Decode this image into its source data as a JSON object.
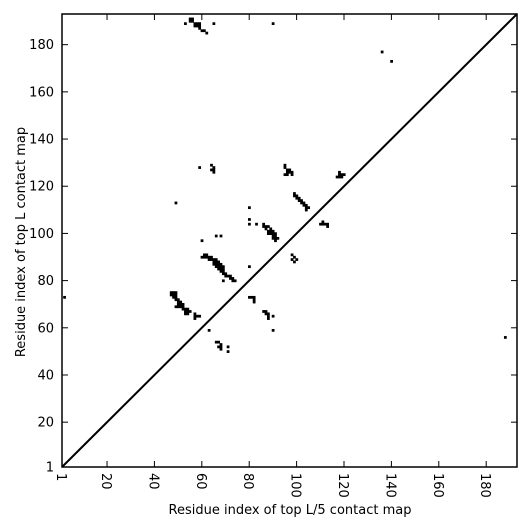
{
  "chart_data": {
    "type": "scatter",
    "xlabel": "Residue index of top L/5 contact map",
    "ylabel": "Residue index of top L contact map",
    "xlim": [
      1,
      193
    ],
    "ylim": [
      1,
      193
    ],
    "x_ticks": [
      1,
      20,
      40,
      60,
      80,
      100,
      120,
      140,
      160,
      180
    ],
    "x_tick_labels": [
      "1",
      "20",
      "40",
      "60",
      "80",
      "100",
      "120",
      "140",
      "160",
      "180"
    ],
    "y_ticks": [
      1,
      20,
      40,
      60,
      80,
      100,
      120,
      140,
      160,
      180
    ],
    "y_tick_labels": [
      "1",
      "20",
      "40",
      "60",
      "80",
      "100",
      "120",
      "140",
      "160",
      "180"
    ],
    "x_tick_rotation": "vertical",
    "diagonal": true,
    "grid": false,
    "marker": "black square",
    "points": [
      [
        55,
        191
      ],
      [
        56,
        191
      ],
      [
        55,
        190
      ],
      [
        56,
        190
      ],
      [
        57,
        189
      ],
      [
        58,
        189
      ],
      [
        59,
        189
      ],
      [
        57,
        188
      ],
      [
        58,
        188
      ],
      [
        59,
        188
      ],
      [
        53,
        189
      ],
      [
        65,
        189
      ],
      [
        59,
        187
      ],
      [
        60,
        186
      ],
      [
        61,
        186
      ],
      [
        62,
        185
      ],
      [
        90,
        189
      ],
      [
        136,
        177
      ],
      [
        140,
        173
      ],
      [
        59,
        128
      ],
      [
        64,
        129
      ],
      [
        65,
        128
      ],
      [
        64,
        127
      ],
      [
        65,
        127
      ],
      [
        65,
        126
      ],
      [
        95,
        129
      ],
      [
        95,
        128
      ],
      [
        96,
        127
      ],
      [
        97,
        127
      ],
      [
        96,
        126
      ],
      [
        97,
        126
      ],
      [
        95,
        125
      ],
      [
        96,
        125
      ],
      [
        98,
        126
      ],
      [
        98,
        125
      ],
      [
        117,
        124
      ],
      [
        118,
        124
      ],
      [
        119,
        124
      ],
      [
        118,
        125
      ],
      [
        119,
        125
      ],
      [
        120,
        125
      ],
      [
        118,
        126
      ],
      [
        49,
        113
      ],
      [
        99,
        117
      ],
      [
        99,
        116
      ],
      [
        100,
        116
      ],
      [
        100,
        115
      ],
      [
        101,
        115
      ],
      [
        101,
        114
      ],
      [
        102,
        114
      ],
      [
        102,
        113
      ],
      [
        103,
        113
      ],
      [
        103,
        112
      ],
      [
        104,
        112
      ],
      [
        104,
        111
      ],
      [
        105,
        111
      ],
      [
        104,
        110
      ],
      [
        80,
        111
      ],
      [
        80,
        106
      ],
      [
        80,
        104
      ],
      [
        83,
        104
      ],
      [
        111,
        105
      ],
      [
        110,
        104
      ],
      [
        111,
        104
      ],
      [
        112,
        104
      ],
      [
        113,
        104
      ],
      [
        113,
        103
      ],
      [
        86,
        104
      ],
      [
        86,
        103
      ],
      [
        87,
        103
      ],
      [
        88,
        103
      ],
      [
        89,
        102
      ],
      [
        87,
        102
      ],
      [
        88,
        101
      ],
      [
        89,
        101
      ],
      [
        90,
        101
      ],
      [
        89,
        100
      ],
      [
        90,
        100
      ],
      [
        91,
        100
      ],
      [
        88,
        100
      ],
      [
        90,
        99
      ],
      [
        91,
        99
      ],
      [
        90,
        98
      ],
      [
        91,
        98
      ],
      [
        92,
        98
      ],
      [
        91,
        97
      ],
      [
        66,
        99
      ],
      [
        68,
        99
      ],
      [
        60,
        97
      ],
      [
        61,
        91
      ],
      [
        62,
        91
      ],
      [
        60,
        90
      ],
      [
        61,
        90
      ],
      [
        62,
        90
      ],
      [
        63,
        90
      ],
      [
        64,
        90
      ],
      [
        63,
        89
      ],
      [
        64,
        89
      ],
      [
        65,
        89
      ],
      [
        66,
        89
      ],
      [
        65,
        88
      ],
      [
        66,
        88
      ],
      [
        67,
        88
      ],
      [
        65,
        87
      ],
      [
        66,
        87
      ],
      [
        67,
        87
      ],
      [
        68,
        87
      ],
      [
        66,
        86
      ],
      [
        67,
        86
      ],
      [
        68,
        86
      ],
      [
        69,
        86
      ],
      [
        67,
        85
      ],
      [
        68,
        85
      ],
      [
        69,
        85
      ],
      [
        68,
        84
      ],
      [
        69,
        84
      ],
      [
        69,
        83
      ],
      [
        70,
        83
      ],
      [
        70,
        82
      ],
      [
        71,
        82
      ],
      [
        72,
        82
      ],
      [
        72,
        81
      ],
      [
        73,
        81
      ],
      [
        73,
        80
      ],
      [
        74,
        80
      ],
      [
        69,
        80
      ],
      [
        98,
        91
      ],
      [
        99,
        90
      ],
      [
        100,
        89
      ],
      [
        98,
        89
      ],
      [
        99,
        88
      ],
      [
        80,
        86
      ],
      [
        47,
        75
      ],
      [
        48,
        75
      ],
      [
        49,
        75
      ],
      [
        47,
        74
      ],
      [
        48,
        74
      ],
      [
        49,
        74
      ],
      [
        48,
        73
      ],
      [
        49,
        73
      ],
      [
        49,
        72
      ],
      [
        50,
        72
      ],
      [
        50,
        71
      ],
      [
        51,
        71
      ],
      [
        50,
        70
      ],
      [
        51,
        70
      ],
      [
        52,
        70
      ],
      [
        49,
        69
      ],
      [
        50,
        69
      ],
      [
        51,
        69
      ],
      [
        52,
        69
      ],
      [
        52,
        68
      ],
      [
        53,
        68
      ],
      [
        54,
        68
      ],
      [
        53,
        67
      ],
      [
        54,
        67
      ],
      [
        55,
        67
      ],
      [
        53,
        66
      ],
      [
        54,
        66
      ],
      [
        57,
        66
      ],
      [
        57,
        65
      ],
      [
        58,
        65
      ],
      [
        59,
        65
      ],
      [
        57,
        64
      ],
      [
        80,
        73
      ],
      [
        81,
        73
      ],
      [
        82,
        73
      ],
      [
        82,
        72
      ],
      [
        82,
        71
      ],
      [
        86,
        67
      ],
      [
        87,
        67
      ],
      [
        87,
        66
      ],
      [
        88,
        66
      ],
      [
        88,
        65
      ],
      [
        90,
        65
      ],
      [
        88,
        64
      ],
      [
        2,
        73
      ],
      [
        188,
        56
      ],
      [
        63,
        59
      ],
      [
        90,
        59
      ],
      [
        66,
        54
      ],
      [
        67,
        54
      ],
      [
        68,
        53
      ],
      [
        67,
        52
      ],
      [
        68,
        52
      ],
      [
        71,
        52
      ],
      [
        68,
        51
      ],
      [
        71,
        50
      ]
    ]
  }
}
